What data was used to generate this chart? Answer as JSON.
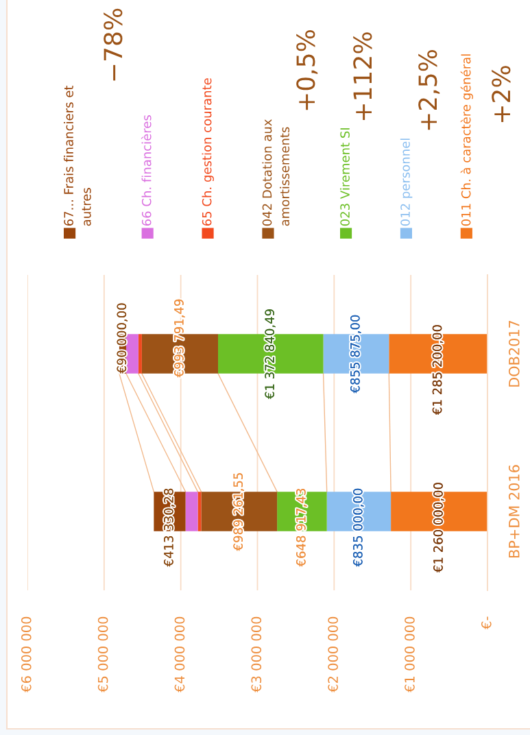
{
  "chart_data": {
    "type": "bar",
    "orientation": "horizontal",
    "stacked": true,
    "categories": [
      "DOB2017",
      "BP+DM 2016"
    ],
    "series": [
      {
        "name": "011 Ch. à caractère général",
        "color": "#f2771d",
        "values": [
          1285200.0,
          1260000.0
        ],
        "value_labels": [
          "€1 285 200,00",
          "€1 260 000,00"
        ]
      },
      {
        "name": "012 personnel",
        "color": "#8cbff0",
        "values": [
          855875.0,
          835000.0
        ],
        "value_labels": [
          "€855 875,00",
          "€835 000,00"
        ]
      },
      {
        "name": "023 Virement SI",
        "color": "#6cbf26",
        "values": [
          1372840.49,
          648917.43
        ],
        "value_labels": [
          "€1 372 840,49",
          "€648 917,43"
        ]
      },
      {
        "name": "042 Dotation aux amortissements",
        "color": "#9c5317",
        "values": [
          993791.49,
          989261.55
        ],
        "value_labels": [
          "€993 791,49",
          "€989 261,55"
        ]
      },
      {
        "name": "65 Ch. gestion courante",
        "color": "#f24a1f",
        "values": [
          45000,
          45000
        ],
        "value_labels": [
          null,
          null
        ]
      },
      {
        "name": "66 Ch. financières",
        "color": "#da70e0",
        "values": [
          160000,
          160000
        ],
        "value_labels": [
          null,
          null
        ]
      },
      {
        "name": "67... Frais financiers et autres",
        "color": "#9a450b",
        "values": [
          90000.0,
          413330.28
        ],
        "value_labels": [
          "€90 000,00",
          "€413 330,28"
        ]
      }
    ],
    "xlim": [
      6000000,
      0
    ],
    "xticks": [
      {
        "value": 6000000,
        "label": "€6 000 000"
      },
      {
        "value": 5000000,
        "label": "€5 000 000"
      },
      {
        "value": 4000000,
        "label": "€4 000 000"
      },
      {
        "value": 3000000,
        "label": "€3 000 000"
      },
      {
        "value": 2000000,
        "label": "€2 000 000"
      },
      {
        "value": 1000000,
        "label": "€1 000 000"
      },
      {
        "value": 0,
        "label": "€-"
      }
    ],
    "grid": "x",
    "legend": "top",
    "annotations": [
      "−78%",
      "+0,5%",
      "+112%",
      "+2,5%",
      "+2%"
    ]
  }
}
